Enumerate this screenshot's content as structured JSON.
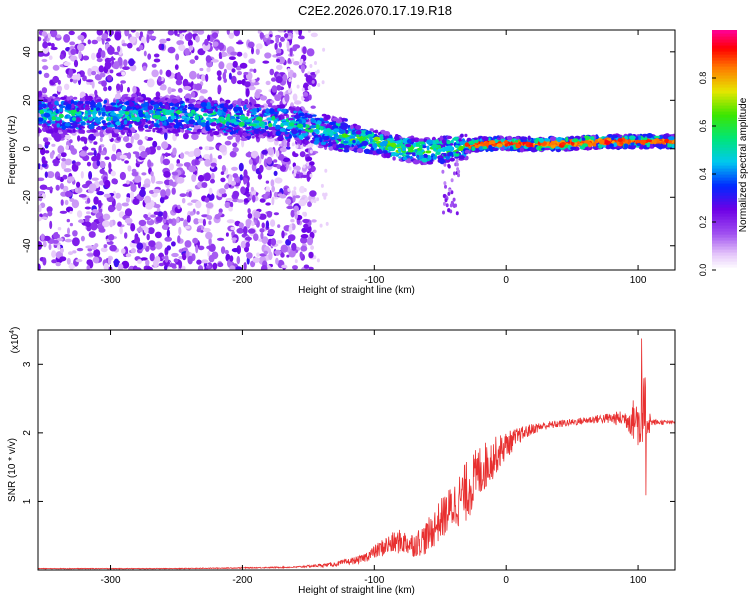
{
  "figure_title": "C2E2.2026.070.17.19.R18",
  "colors": {
    "snr_line": "#e83030",
    "axis": "#000000",
    "background": "#ffffff"
  },
  "chart_data": [
    {
      "type": "heatmap",
      "title": "C2E2.2026.070.17.19.R18",
      "xlabel": "Height of straight line (km)",
      "ylabel": "Frequency (Hz)",
      "xlim": [
        -355,
        128
      ],
      "ylim": [
        -50,
        49
      ],
      "xticks": [
        -300,
        -200,
        -100,
        0,
        100
      ],
      "yticks": [
        -40,
        -20,
        0,
        20,
        40
      ],
      "ridge": {
        "description_points_x": [
          -355,
          -300,
          -250,
          -200,
          -160,
          -130,
          -100,
          -80,
          -60,
          -40,
          -20,
          0,
          40,
          80,
          128
        ],
        "description_points_freq": [
          14,
          14,
          14,
          12,
          10,
          6,
          3,
          0,
          -1,
          0,
          2,
          2,
          2,
          3,
          3
        ]
      },
      "colorbar": {
        "label": "Normalized spectral amplitude",
        "range": [
          0,
          1
        ],
        "ticks": [
          0.0,
          0.2,
          0.4,
          0.6,
          0.8
        ]
      }
    },
    {
      "type": "line",
      "xlabel": "Height of straight line (km)",
      "ylabel": "SNR (10 * v/v)",
      "yscale_label": "(x10",
      "yscale_exponent": "4",
      "xlim": [
        -355,
        128
      ],
      "ylim": [
        0,
        3.5
      ],
      "xticks": [
        -300,
        -200,
        -100,
        0,
        100
      ],
      "yticks": [
        1,
        2,
        3
      ],
      "series": [
        {
          "name": "SNR",
          "envelope_x": [
            -355,
            -300,
            -250,
            -200,
            -160,
            -130,
            -110,
            -100,
            -90,
            -80,
            -70,
            -60,
            -50,
            -40,
            -30,
            -20,
            -10,
            0,
            10,
            20,
            30,
            50,
            70,
            90,
            100,
            105,
            110,
            128
          ],
          "envelope_y": [
            0.02,
            0.02,
            0.02,
            0.03,
            0.04,
            0.08,
            0.15,
            0.25,
            0.35,
            0.4,
            0.35,
            0.45,
            0.7,
            0.9,
            1.1,
            1.4,
            1.6,
            1.8,
            1.95,
            2.05,
            2.1,
            2.15,
            2.2,
            2.2,
            2.15,
            2.2,
            2.15,
            2.15
          ],
          "noise": [
            0.005,
            0.005,
            0.005,
            0.008,
            0.01,
            0.03,
            0.06,
            0.1,
            0.15,
            0.18,
            0.18,
            0.25,
            0.3,
            0.35,
            0.45,
            0.4,
            0.3,
            0.2,
            0.12,
            0.08,
            0.06,
            0.05,
            0.06,
            0.12,
            0.4,
            0.6,
            0.05,
            0.02
          ]
        }
      ]
    }
  ]
}
